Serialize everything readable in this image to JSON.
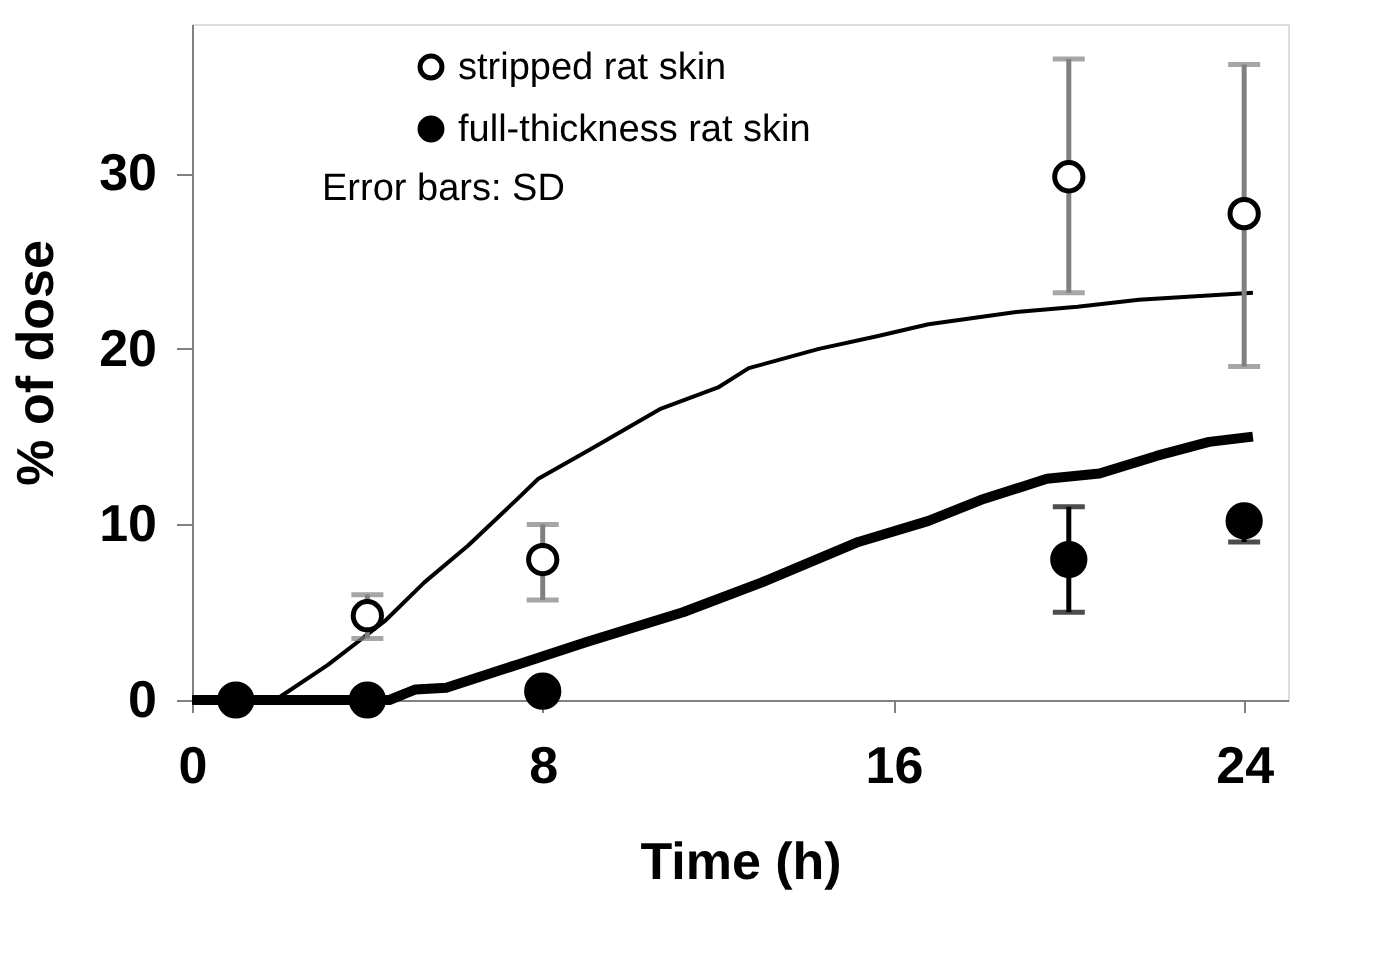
{
  "chart_data": {
    "type": "line",
    "xlabel": "Time (h)",
    "ylabel": "% of dose",
    "xlim": [
      0,
      25
    ],
    "ylim": [
      0,
      38.5
    ],
    "xticks": [
      0,
      8,
      16,
      24
    ],
    "yticks": [
      0,
      10,
      20,
      30
    ],
    "grid": false,
    "legend": "top left",
    "annotations": [
      "Error bars: SD"
    ],
    "series": [
      {
        "type": "line",
        "color": "#000000",
        "x": [
          0,
          1.9,
          3.1,
          4.4,
          5.3,
          6.3,
          7.4,
          7.9,
          9.1,
          10.7,
          12.0,
          12.7,
          14.3,
          15.6,
          16.8,
          18.8,
          20.2,
          21.6,
          24.2
        ],
        "values": [
          0,
          0,
          2.0,
          4.5,
          6.7,
          8.8,
          11.4,
          12.6,
          14.3,
          16.6,
          17.8,
          18.9,
          20.0,
          20.7,
          21.4,
          22.1,
          22.4,
          22.8,
          23.2
        ]
      },
      {
        "type": "line",
        "color": "#000000",
        "x": [
          0,
          4.5,
          5.1,
          5.8,
          7.4,
          9.0,
          11.2,
          13.0,
          15.2,
          16.8,
          18.0,
          19.5,
          20.7,
          22.0,
          23.2,
          24.2
        ],
        "values": [
          0,
          0,
          0.6,
          0.7,
          2.0,
          3.3,
          5.0,
          6.7,
          9.0,
          10.2,
          11.4,
          12.6,
          12.9,
          13.9,
          14.7,
          15.0
        ]
      },
      {
        "type": "scatter",
        "name": "stripped rat skin",
        "color": "#000000",
        "marker": "circle",
        "x": [
          4,
          8,
          20,
          24
        ],
        "values": [
          4.8,
          8.0,
          29.8,
          27.7
        ],
        "errors": [
          [
            3.5,
            6.0
          ],
          [
            5.7,
            10.0
          ],
          [
            23.2,
            36.5
          ],
          [
            19.0,
            36.2
          ]
        ]
      },
      {
        "type": "scatter",
        "name": "full-thickness rat skin",
        "color": "#000000",
        "marker": "circle",
        "x": [
          1,
          4,
          8,
          20,
          24
        ],
        "values": [
          0,
          0,
          0.5,
          8.0,
          10.2
        ],
        "errors": [
          null,
          null,
          [
            0.5,
            0.5
          ],
          [
            5.0,
            11.0
          ],
          [
            9.0,
            10.2
          ]
        ]
      }
    ]
  }
}
